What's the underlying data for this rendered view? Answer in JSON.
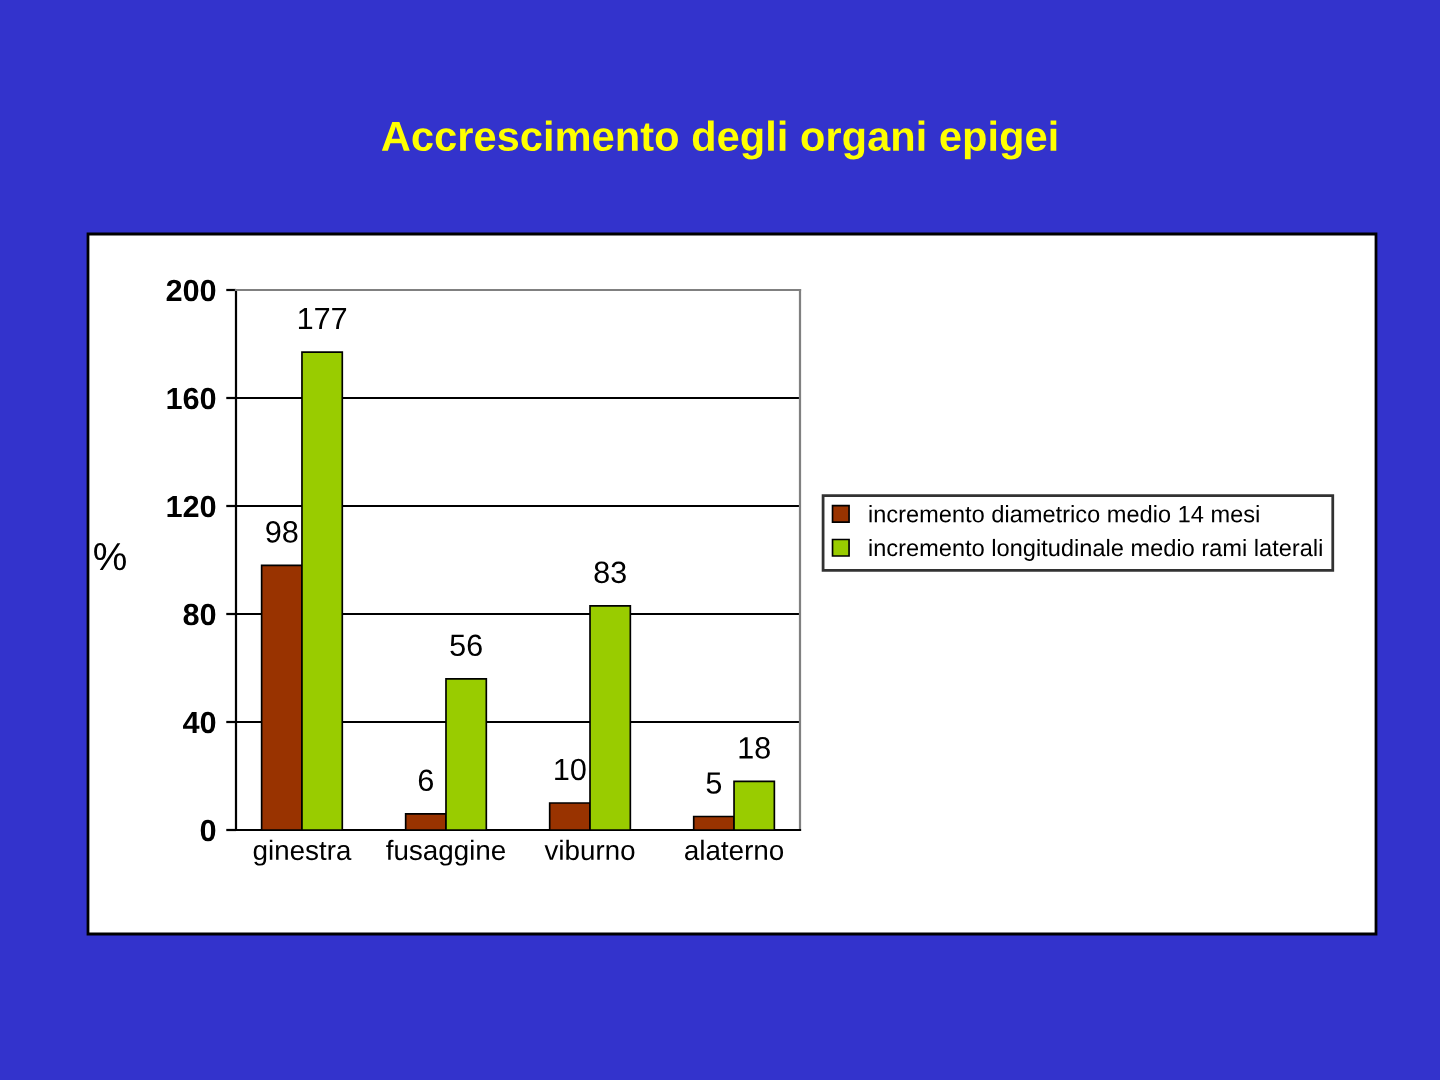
{
  "chart_data": {
    "type": "bar",
    "title": "Accrescimento degli organi epigei",
    "ylabel": "%",
    "categories": [
      "ginestra",
      "fusaggine",
      "viburno",
      "alaterno"
    ],
    "series": [
      {
        "name": "incremento diametrico medio 14 mesi",
        "color": "#993300",
        "values": [
          98,
          6,
          10,
          5
        ]
      },
      {
        "name": "incremento longitudinale medio rami laterali",
        "color": "#99cc00",
        "values": [
          177,
          56,
          83,
          18
        ]
      }
    ],
    "ylim": [
      0,
      200
    ],
    "yticks": [
      0,
      40,
      80,
      120,
      160,
      200
    ],
    "grid": "y",
    "legend": "right",
    "data_labels": true
  }
}
